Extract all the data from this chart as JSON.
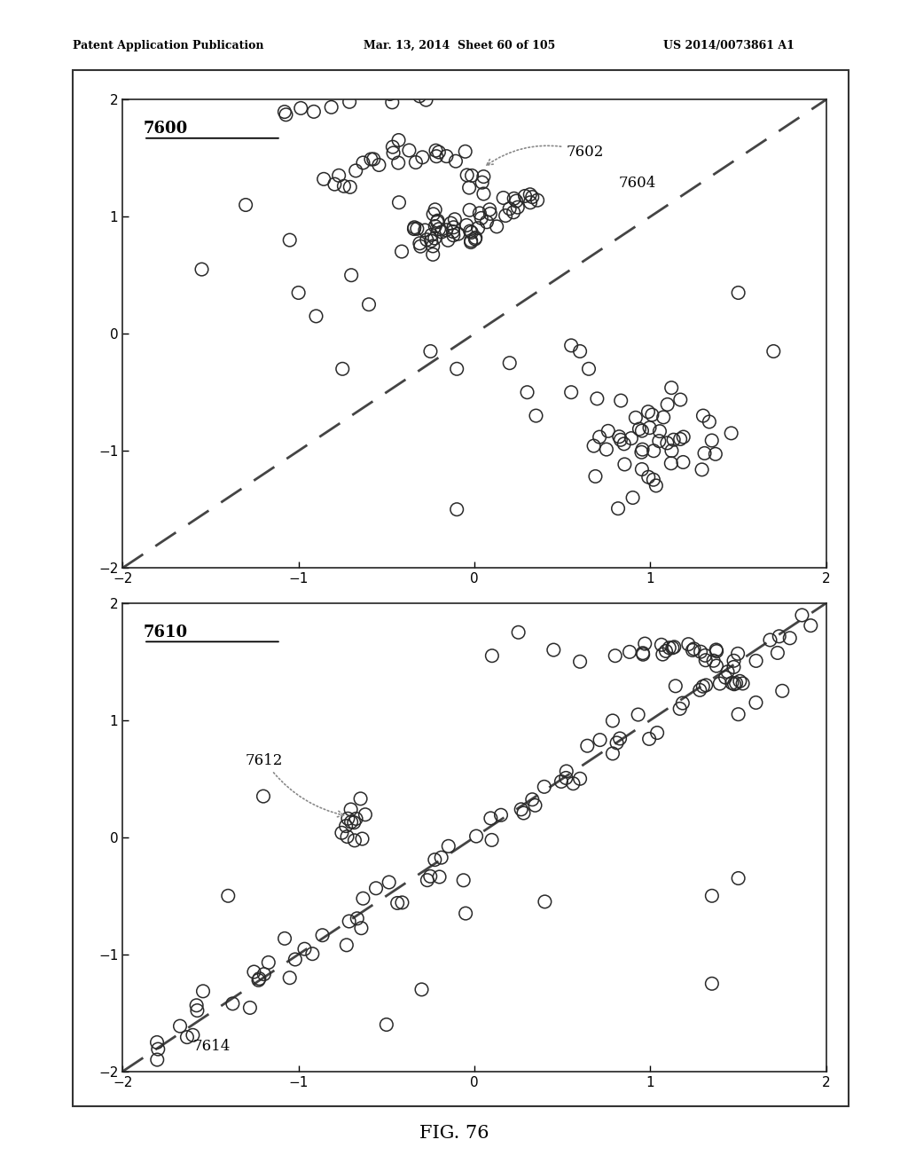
{
  "header_left": "Patent Application Publication",
  "header_mid": "Mar. 13, 2014  Sheet 60 of 105",
  "header_right": "US 2014/0073861 A1",
  "caption": "FIG. 76",
  "top_label": "7600",
  "top_cluster_label": "7602",
  "top_line_label": "7604",
  "bot_label": "7610",
  "bot_cluster_label": "7612",
  "bot_line_label": "7614",
  "axis_lim": [
    -2,
    2
  ],
  "axis_ticks": [
    -2,
    -1,
    0,
    1,
    2
  ],
  "background": "#ffffff",
  "marker_edge_color": "#2a2a2a",
  "dashed_color": "#444444",
  "annotation_color": "#888888",
  "border_color": "#333333"
}
